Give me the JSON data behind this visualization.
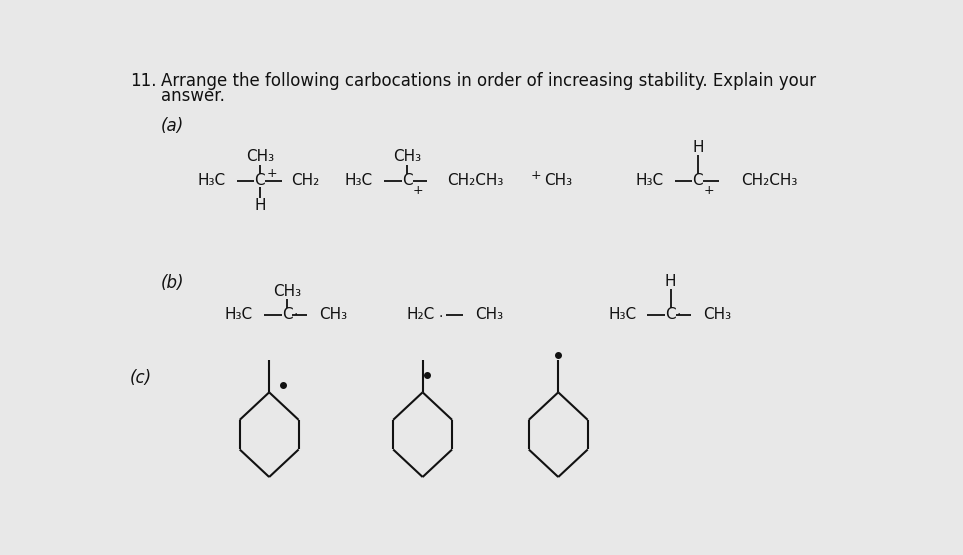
{
  "bg_color": "#e8e8e8",
  "text_color": "#111111",
  "title_num": "11.",
  "title_text": "Arrange the following carbocations in order of increasing stability. Explain your",
  "title_text2": "answer.",
  "part_a": "(a)",
  "part_b": "(b)",
  "part_c": "(c)",
  "fs_main": 12,
  "fs_chem": 11
}
